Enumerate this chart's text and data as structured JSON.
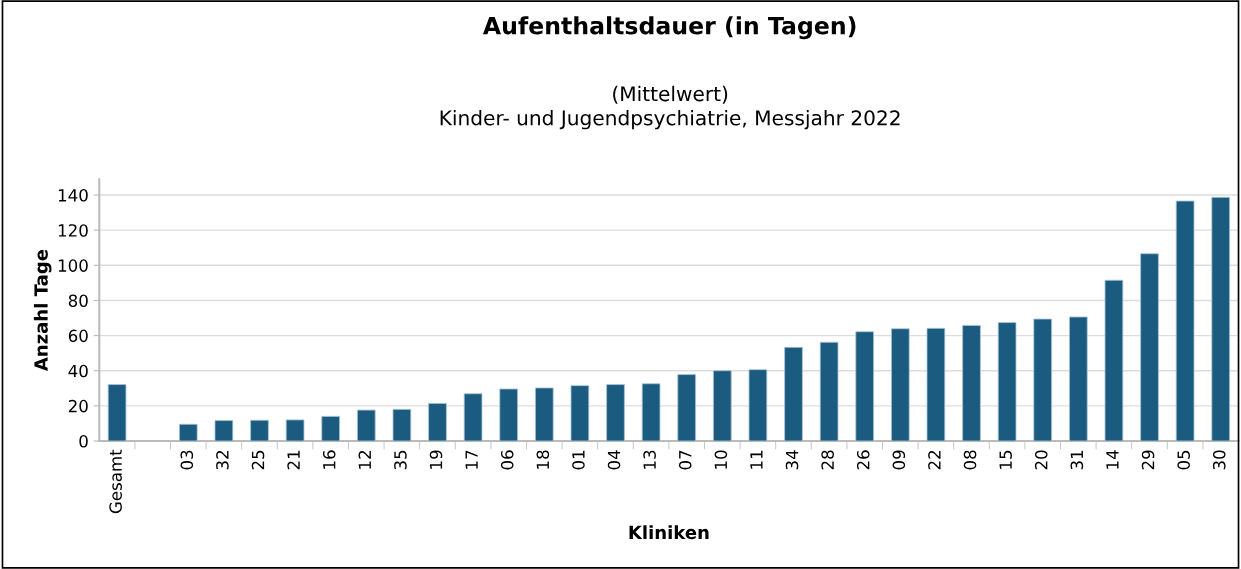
{
  "chart_data": {
    "type": "bar",
    "title": "Aufenthaltsdauer (in Tagen)",
    "subtitle": "(Mittelwert)\nKinder- und Jugendpsychiatrie, Messjahr 2022",
    "xlabel": "Kliniken",
    "ylabel": "Anzahl Tage",
    "categories": [
      "Gesamt",
      null,
      "03",
      "32",
      "25",
      "21",
      "16",
      "12",
      "35",
      "19",
      "17",
      "06",
      "18",
      "01",
      "04",
      "13",
      "07",
      "10",
      "11",
      "34",
      "28",
      "26",
      "09",
      "22",
      "08",
      "15",
      "20",
      "31",
      "14",
      "29",
      "05",
      "30"
    ],
    "values": [
      32.1,
      null,
      9.5,
      11.6,
      11.8,
      12.0,
      14.0,
      17.6,
      18.0,
      21.4,
      26.9,
      29.6,
      30.2,
      31.5,
      32.1,
      32.6,
      37.8,
      40.0,
      40.6,
      53.3,
      56.2,
      62.2,
      63.9,
      64.1,
      65.8,
      67.4,
      69.4,
      70.6,
      91.5,
      106.6,
      136.6,
      138.7
    ],
    "color": "#1b5b80",
    "ylim": [
      0,
      149
    ],
    "yticks": [
      0,
      20,
      40,
      60,
      80,
      100,
      120,
      140
    ],
    "grid": "y",
    "legend": false
  }
}
